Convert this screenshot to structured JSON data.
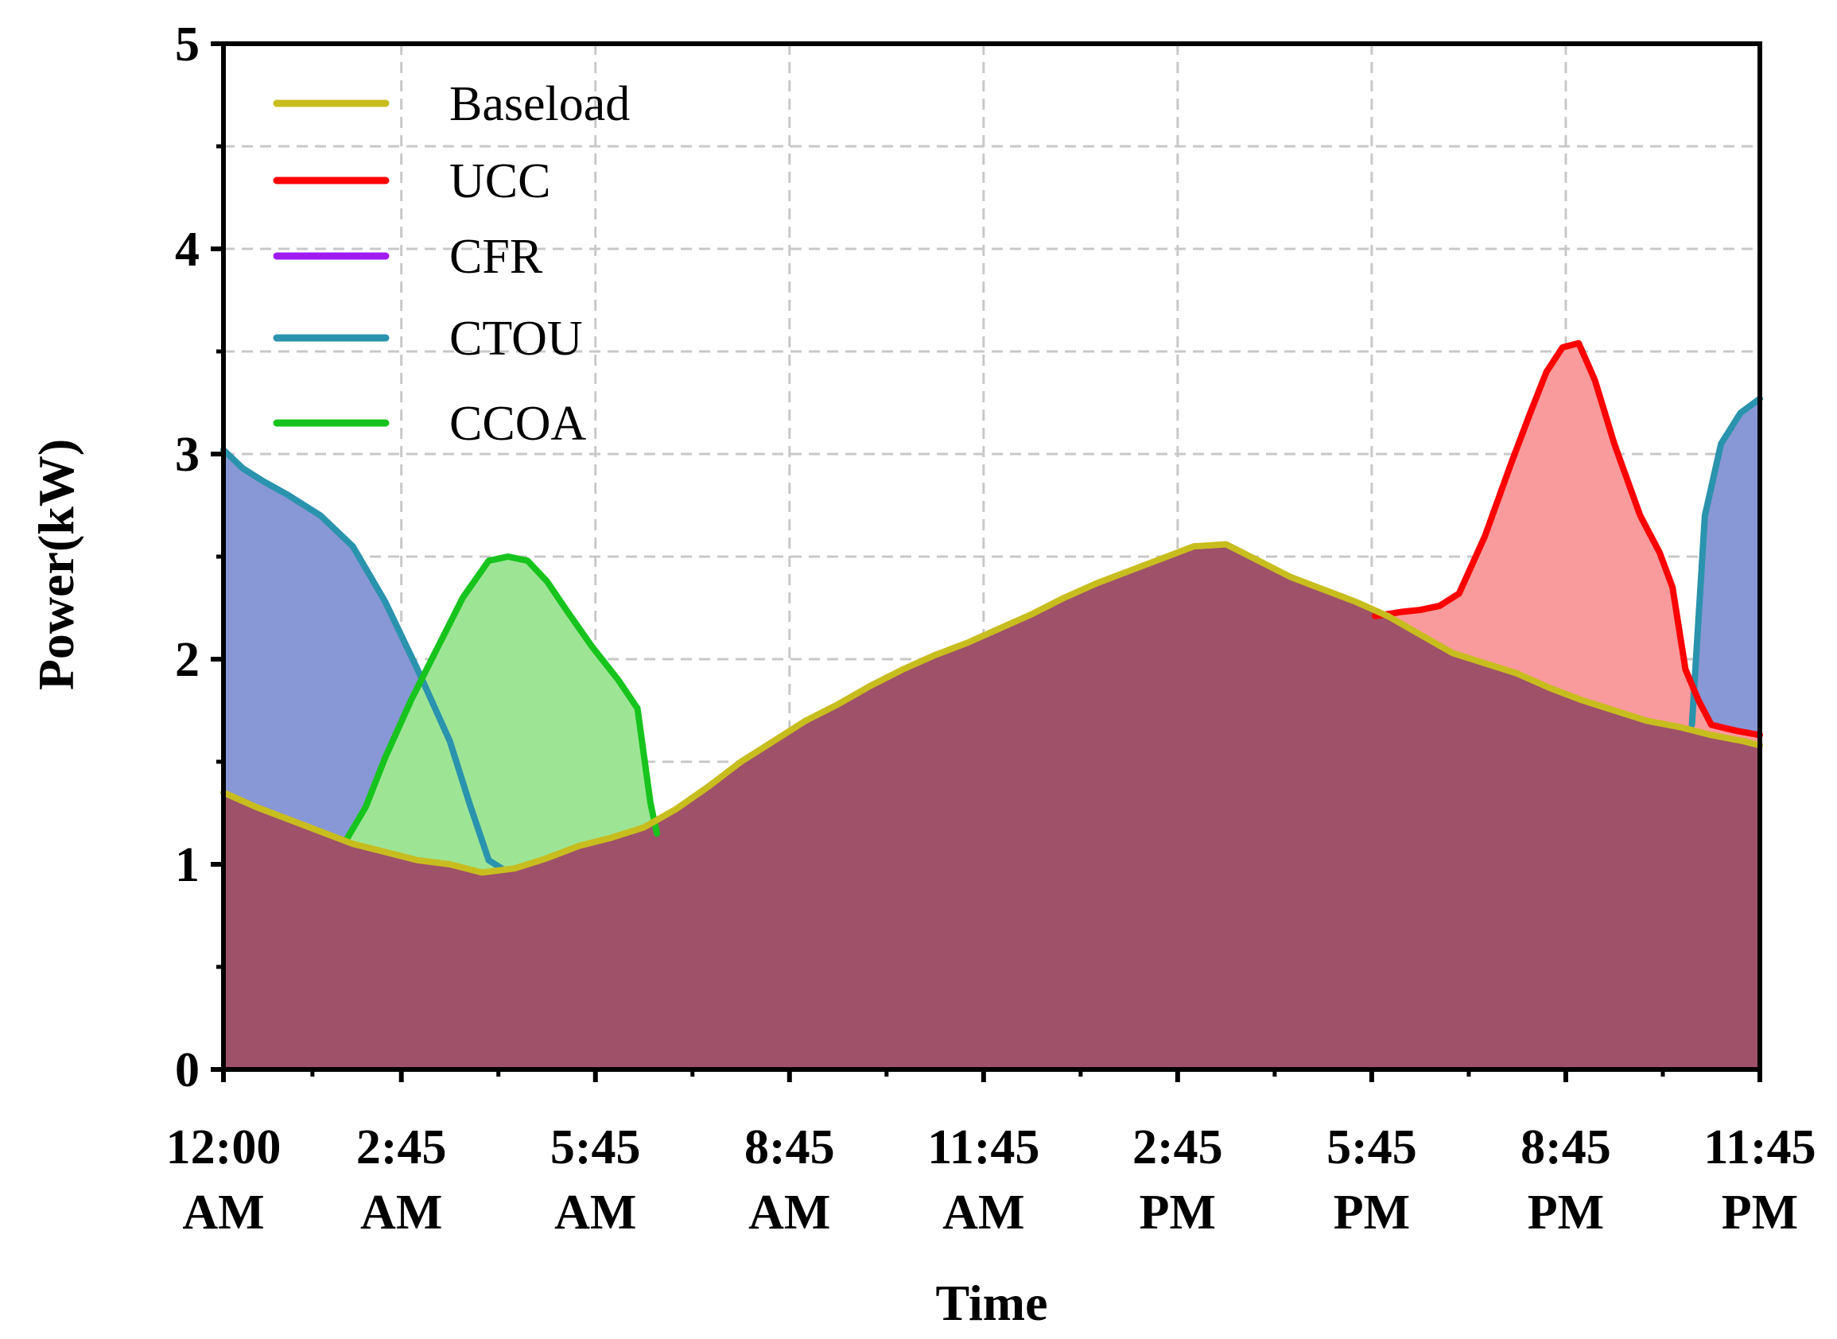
{
  "chart_data": {
    "type": "area",
    "xlabel": "Time",
    "ylabel": "Power(kW)",
    "ylim": [
      0,
      5
    ],
    "xlim": [
      0,
      23.75
    ],
    "grid": true,
    "legend_position": "top-left",
    "yticks": [
      0,
      1,
      2,
      3,
      4,
      5
    ],
    "yticks_labels": [
      "0",
      "1",
      "2",
      "3",
      "4",
      "5"
    ],
    "xticks": [
      {
        "x": 0,
        "line1": "12:00",
        "line2": "AM"
      },
      {
        "x": 2.75,
        "line1": "2:45",
        "line2": "AM"
      },
      {
        "x": 5.75,
        "line1": "5:45",
        "line2": "AM"
      },
      {
        "x": 8.75,
        "line1": "8:45",
        "line2": "AM"
      },
      {
        "x": 11.75,
        "line1": "11:45",
        "line2": "AM"
      },
      {
        "x": 14.75,
        "line1": "2:45",
        "line2": "PM"
      },
      {
        "x": 17.75,
        "line1": "5:45",
        "line2": "PM"
      },
      {
        "x": 20.75,
        "line1": "8:45",
        "line2": "PM"
      },
      {
        "x": 23.75,
        "line1": "11:45",
        "line2": "PM"
      }
    ],
    "series": [
      {
        "name": "Baseload",
        "line_color": "#c8bd1e",
        "fill_color": "#9e5169",
        "points": [
          [
            0,
            1.35
          ],
          [
            0.5,
            1.28
          ],
          [
            1,
            1.22
          ],
          [
            1.5,
            1.16
          ],
          [
            2,
            1.1
          ],
          [
            2.5,
            1.06
          ],
          [
            3,
            1.02
          ],
          [
            3.5,
            1.0
          ],
          [
            4,
            0.96
          ],
          [
            4.5,
            0.98
          ],
          [
            5,
            1.03
          ],
          [
            5.5,
            1.09
          ],
          [
            6,
            1.13
          ],
          [
            6.5,
            1.18
          ],
          [
            7,
            1.27
          ],
          [
            7.5,
            1.38
          ],
          [
            8,
            1.5
          ],
          [
            8.5,
            1.6
          ],
          [
            9,
            1.7
          ],
          [
            9.5,
            1.78
          ],
          [
            10,
            1.87
          ],
          [
            10.5,
            1.95
          ],
          [
            11,
            2.02
          ],
          [
            11.5,
            2.08
          ],
          [
            12,
            2.15
          ],
          [
            12.5,
            2.22
          ],
          [
            13,
            2.3
          ],
          [
            13.5,
            2.37
          ],
          [
            14,
            2.43
          ],
          [
            14.5,
            2.49
          ],
          [
            15,
            2.55
          ],
          [
            15.5,
            2.56
          ],
          [
            16,
            2.48
          ],
          [
            16.5,
            2.4
          ],
          [
            17,
            2.34
          ],
          [
            17.5,
            2.28
          ],
          [
            18,
            2.21
          ],
          [
            18.5,
            2.12
          ],
          [
            19,
            2.03
          ],
          [
            19.5,
            1.98
          ],
          [
            20,
            1.93
          ],
          [
            20.5,
            1.86
          ],
          [
            21,
            1.8
          ],
          [
            21.5,
            1.75
          ],
          [
            22,
            1.7
          ],
          [
            22.5,
            1.67
          ],
          [
            23,
            1.63
          ],
          [
            23.5,
            1.6
          ],
          [
            23.75,
            1.58
          ]
        ]
      },
      {
        "name": "UCC",
        "line_color": "#ff0000",
        "fill_color": "#f99a9c",
        "points": [
          [
            17.8,
            2.21
          ],
          [
            18.2,
            2.23
          ],
          [
            18.5,
            2.24
          ],
          [
            18.8,
            2.26
          ],
          [
            19.1,
            2.32
          ],
          [
            19.5,
            2.6
          ],
          [
            19.9,
            2.95
          ],
          [
            20.2,
            3.2
          ],
          [
            20.45,
            3.4
          ],
          [
            20.7,
            3.52
          ],
          [
            20.95,
            3.54
          ],
          [
            21.2,
            3.36
          ],
          [
            21.5,
            3.05
          ],
          [
            21.9,
            2.7
          ],
          [
            22.2,
            2.52
          ],
          [
            22.4,
            2.35
          ],
          [
            22.6,
            1.95
          ],
          [
            22.8,
            1.8
          ],
          [
            23.0,
            1.68
          ],
          [
            23.4,
            1.65
          ],
          [
            23.75,
            1.63
          ]
        ]
      },
      {
        "name": "CFR",
        "line_color": "#9e1bf2",
        "fill_color": "#b983f0",
        "points": []
      },
      {
        "name": "CTOU",
        "line_color": "#2a93ad",
        "fill_color": "#8897d6",
        "segments": [
          [
            [
              0,
              3.02
            ],
            [
              0.3,
              2.93
            ],
            [
              0.6,
              2.87
            ],
            [
              1.0,
              2.8
            ],
            [
              1.5,
              2.7
            ],
            [
              2.0,
              2.55
            ],
            [
              2.5,
              2.28
            ],
            [
              3.0,
              1.95
            ],
            [
              3.5,
              1.6
            ],
            [
              3.8,
              1.3
            ],
            [
              4.1,
              1.02
            ],
            [
              4.3,
              0.98
            ]
          ],
          [
            [
              22.7,
              1.68
            ],
            [
              22.9,
              2.7
            ],
            [
              23.15,
              3.05
            ],
            [
              23.45,
              3.2
            ],
            [
              23.75,
              3.27
            ]
          ]
        ]
      },
      {
        "name": "CCOA",
        "line_color": "#17c41d",
        "fill_color": "#9de595",
        "points": [
          [
            1.9,
            1.12
          ],
          [
            2.2,
            1.28
          ],
          [
            2.5,
            1.52
          ],
          [
            2.9,
            1.8
          ],
          [
            3.3,
            2.05
          ],
          [
            3.7,
            2.3
          ],
          [
            4.1,
            2.48
          ],
          [
            4.4,
            2.5
          ],
          [
            4.7,
            2.48
          ],
          [
            5.0,
            2.38
          ],
          [
            5.3,
            2.24
          ],
          [
            5.7,
            2.06
          ],
          [
            6.1,
            1.9
          ],
          [
            6.4,
            1.76
          ],
          [
            6.6,
            1.3
          ],
          [
            6.7,
            1.15
          ]
        ]
      }
    ]
  }
}
